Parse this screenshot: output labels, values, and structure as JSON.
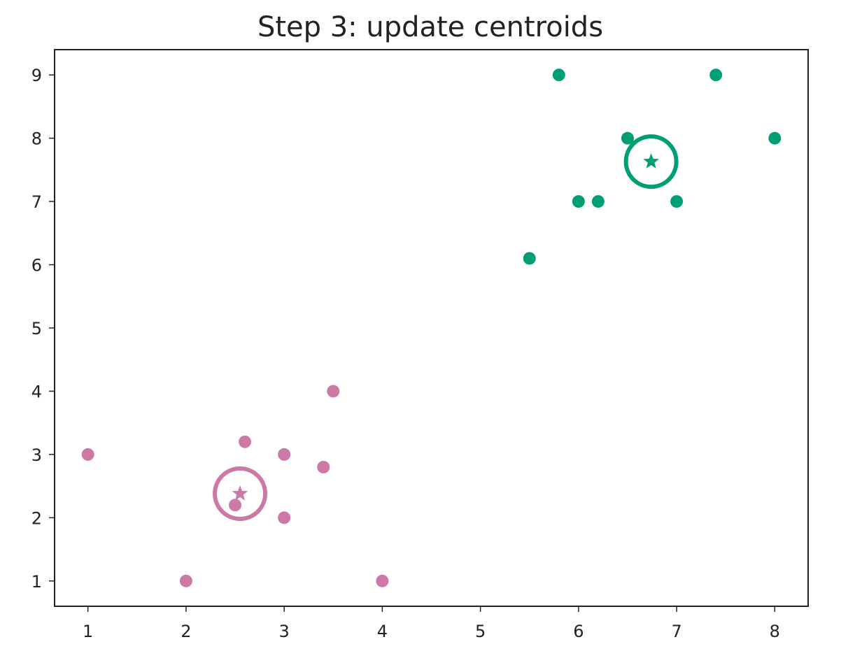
{
  "chart_data": {
    "type": "scatter",
    "title": "Step 3: update centroids",
    "xlabel": "",
    "ylabel": "",
    "xlim": [
      0.66,
      8.34
    ],
    "ylim": [
      0.6,
      9.4
    ],
    "xticks": [
      1,
      2,
      3,
      4,
      5,
      6,
      7,
      8
    ],
    "yticks": [
      1,
      2,
      3,
      4,
      5,
      6,
      7,
      8,
      9
    ],
    "grid": false,
    "legend": "none",
    "series": [
      {
        "color": "#cc79a7",
        "points": [
          [
            1,
            3
          ],
          [
            2,
            1
          ],
          [
            2.5,
            2.2
          ],
          [
            2.6,
            3.2
          ],
          [
            3,
            3
          ],
          [
            3,
            2
          ],
          [
            3.4,
            2.8
          ],
          [
            3.5,
            4
          ],
          [
            4,
            1
          ]
        ],
        "centroid": [
          2.55,
          2.38
        ]
      },
      {
        "color": "#009e73",
        "points": [
          [
            5.5,
            6.1
          ],
          [
            5.8,
            9
          ],
          [
            6,
            7
          ],
          [
            6.2,
            7
          ],
          [
            6.5,
            8
          ],
          [
            7,
            7
          ],
          [
            7.4,
            9
          ],
          [
            8,
            8
          ]
        ],
        "centroid": [
          6.74,
          7.63
        ]
      }
    ]
  }
}
